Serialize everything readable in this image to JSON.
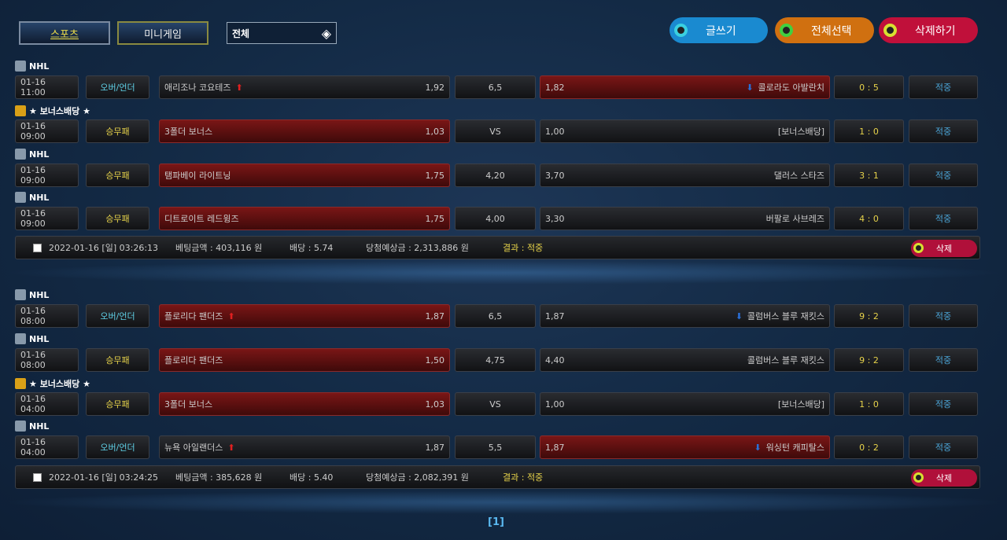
{
  "tabs": [
    {
      "label": "스포츠",
      "active": true
    },
    {
      "label": "미니게임",
      "active": false
    }
  ],
  "filter": {
    "value": "전체",
    "icon": "diamond-down-icon"
  },
  "actions": [
    {
      "label": "글쓰기",
      "color": "#1a8ad0",
      "ring": "#3ad0e0"
    },
    {
      "label": "전체선택",
      "color": "#d07010",
      "ring": "#40d040"
    },
    {
      "label": "삭제하기",
      "color": "#c0103a",
      "ring": "#d8e030"
    }
  ],
  "groups": [
    {
      "bets": [
        {
          "league": "NHL",
          "bonus": false,
          "time": "01-16 11:00",
          "type": "오버/언더",
          "home": "애리조나 코요테즈",
          "home_odds": "1,92",
          "mid": "6,5",
          "away_odds": "1,82",
          "away": "콜로라도 아발란치",
          "score": "0 : 5",
          "result": "적중",
          "pick": "away",
          "arrows": true
        },
        {
          "league": "★ 보너스배당 ★",
          "bonus": true,
          "time": "01-16 09:00",
          "type": "승무패",
          "home": "3폴더 보너스",
          "home_odds": "1,03",
          "mid": "VS",
          "away_odds": "1,00",
          "away": "[보너스배당]",
          "score": "1 : 0",
          "result": "적중",
          "pick": "home",
          "arrows": false
        },
        {
          "league": "NHL",
          "bonus": false,
          "time": "01-16 09:00",
          "type": "승무패",
          "home": "탬파베이 라이트닝",
          "home_odds": "1,75",
          "mid": "4,20",
          "away_odds": "3,70",
          "away": "댈러스 스타즈",
          "score": "3 : 1",
          "result": "적중",
          "pick": "home",
          "arrows": false
        },
        {
          "league": "NHL",
          "bonus": false,
          "time": "01-16 09:00",
          "type": "승무패",
          "home": "디트로이트 레드윙즈",
          "home_odds": "1,75",
          "mid": "4,00",
          "away_odds": "3,30",
          "away": "버팔로 사브레즈",
          "score": "4 : 0",
          "result": "적중",
          "pick": "home",
          "arrows": false
        }
      ],
      "summary": {
        "date": "2022-01-16 [일] 03:26:13",
        "amount": "베팅금액 : 403,116 원",
        "odds": "배당 : 5.74",
        "expected": "당첨예상금 : 2,313,886 원",
        "result": "결과 : 적중",
        "delete": "삭제"
      }
    },
    {
      "bets": [
        {
          "league": "NHL",
          "bonus": false,
          "time": "01-16 08:00",
          "type": "오버/언더",
          "home": "플로리다 팬더즈",
          "home_odds": "1,87",
          "mid": "6,5",
          "away_odds": "1,87",
          "away": "콜럼버스 블루 재킷스",
          "score": "9 : 2",
          "result": "적중",
          "pick": "home",
          "arrows": true
        },
        {
          "league": "NHL",
          "bonus": false,
          "time": "01-16 08:00",
          "type": "승무패",
          "home": "플로리다 팬더즈",
          "home_odds": "1,50",
          "mid": "4,75",
          "away_odds": "4,40",
          "away": "콜럼버스 블루 재킷스",
          "score": "9 : 2",
          "result": "적중",
          "pick": "home",
          "arrows": false
        },
        {
          "league": "★ 보너스배당 ★",
          "bonus": true,
          "time": "01-16 04:00",
          "type": "승무패",
          "home": "3폴더 보너스",
          "home_odds": "1,03",
          "mid": "VS",
          "away_odds": "1,00",
          "away": "[보너스배당]",
          "score": "1 : 0",
          "result": "적중",
          "pick": "home",
          "arrows": false
        },
        {
          "league": "NHL",
          "bonus": false,
          "time": "01-16 04:00",
          "type": "오버/언더",
          "home": "뉴욕 아일랜더스",
          "home_odds": "1,87",
          "mid": "5,5",
          "away_odds": "1,87",
          "away": "워싱턴 캐피탈스",
          "score": "0 : 2",
          "result": "적중",
          "pick": "away",
          "arrows": true
        }
      ],
      "summary": {
        "date": "2022-01-16 [일] 03:24:25",
        "amount": "베팅금액 : 385,628 원",
        "odds": "배당 : 5.40",
        "expected": "당첨예상금 : 2,082,391 원",
        "result": "결과 : 적중",
        "delete": "삭제"
      }
    }
  ],
  "pagination": {
    "current": "[1]"
  }
}
